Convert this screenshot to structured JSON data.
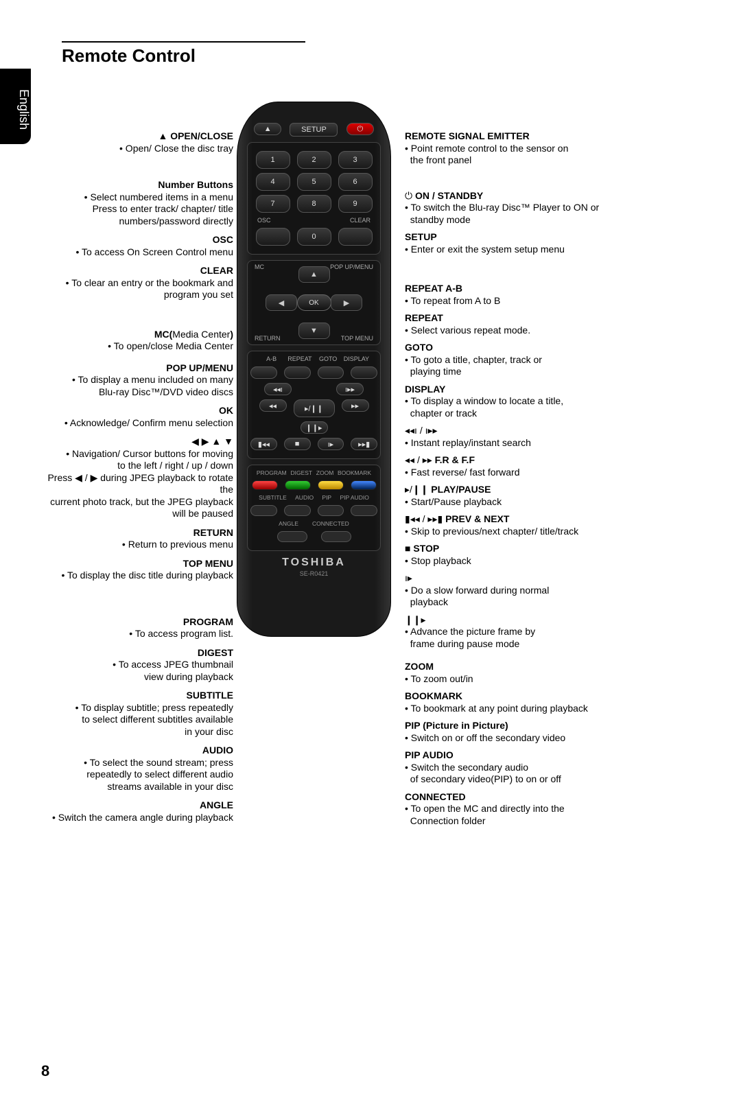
{
  "page": {
    "title": "Remote Control",
    "language": "English",
    "number": "8"
  },
  "remote": {
    "brand": "TOSHIBA",
    "model": "SE-R0421",
    "topButtons": {
      "eject": "▲",
      "setup": "SETUP",
      "power": "⏻"
    },
    "numbers": [
      "1",
      "2",
      "3",
      "4",
      "5",
      "6",
      "7",
      "8",
      "9",
      "0"
    ],
    "oscLabel": "OSC",
    "clearLabel": "CLEAR",
    "nav": {
      "mc": "MC",
      "popup": "POP UP/MENU",
      "return": "RETURN",
      "topmenu": "TOP MENU",
      "ok": "OK"
    },
    "midLabels": [
      "A-B",
      "REPEAT",
      "GOTO",
      "DISPLAY"
    ],
    "transport": {
      "r1": [
        "◂◂ı",
        "ı▸▸"
      ],
      "r2": [
        "◂◂",
        "▸/❙❙",
        "▸▸"
      ],
      "r3": [
        "❙❙▸"
      ],
      "r4": [
        "▮◂◂",
        "■",
        "ı▸",
        "▸▸▮"
      ]
    },
    "colorLabels": [
      "PROGRAM",
      "DIGEST",
      "ZOOM",
      "BOOKMARK"
    ],
    "bottomLabels1": [
      "SUBTITLE",
      "AUDIO",
      "PIP",
      "PIP AUDIO"
    ],
    "bottomLabels2": [
      "ANGLE",
      "CONNECTED"
    ]
  },
  "left": [
    {
      "sym": "▲",
      "lbl": "OPEN/CLOSE",
      "lines": [
        "Open/ Close the disc tray"
      ]
    },
    {
      "lbl": "Number Buttons",
      "lines": [
        "Select numbered items in a menu",
        "Press to enter track/ chapter/ title",
        "numbers/password directly"
      ],
      "gap": 36
    },
    {
      "lbl": "OSC",
      "lines": [
        "To access On Screen Control menu"
      ]
    },
    {
      "lbl": "CLEAR",
      "lines": [
        "To clear an entry or the bookmark and program you set"
      ]
    },
    {
      "lbl": "MC(",
      "suffix": "Media Center",
      "suffix2": ")",
      "lines": [
        "To open/close Media Center"
      ],
      "gap": 40
    },
    {
      "lbl": "POP UP/MENU",
      "lines": [
        "To display a menu included on many",
        "Blu-ray Disc™/DVD video discs"
      ],
      "gap": 14
    },
    {
      "lbl": "OK",
      "lines": [
        "Acknowledge/ Confirm menu selection"
      ]
    },
    {
      "sym": "◀ ▶ ▲ ▼",
      "lbl": "",
      "lines": [
        "Navigation/ Cursor buttons for moving",
        "to the left / right / up / down",
        "Press ◀ / ▶ during JPEG playback to rotate the",
        "current photo track, but the JPEG playback",
        "will be paused"
      ]
    },
    {
      "lbl": "RETURN",
      "lines": [
        "Return to previous menu"
      ]
    },
    {
      "lbl": "TOP MENU",
      "lines": [
        "To display the disc title during playback"
      ]
    },
    {
      "lbl": "PROGRAM",
      "lines": [
        "To access program list."
      ],
      "gap": 50
    },
    {
      "lbl": "DIGEST",
      "lines": [
        "To access JPEG thumbnail",
        "view during playback"
      ],
      "gap": 10
    },
    {
      "lbl": "SUBTITLE",
      "lines": [
        "To display subtitle; press repeatedly",
        "to select different subtitles available",
        "in your disc"
      ],
      "gap": 10
    },
    {
      "lbl": "AUDIO",
      "lines": [
        "To select the sound stream; press",
        "repeatedly to select different audio",
        "streams available in your disc"
      ]
    },
    {
      "lbl": "ANGLE",
      "lines": [
        "Switch the camera angle during playback"
      ],
      "gap": 4
    }
  ],
  "right": [
    {
      "lbl": "REMOTE SIGNAL EMITTER",
      "lines": [
        "Point remote control to the sensor on",
        "the front panel"
      ]
    },
    {
      "lbl": "ON / STANDBY",
      "sym": "⏻",
      "lines": [
        "To switch the Blu-ray Disc™ Player to ON or",
        "standby mode"
      ],
      "gap": 34
    },
    {
      "lbl": "SETUP",
      "lines": [
        "Enter or exit the system setup menu"
      ]
    },
    {
      "lbl": "REPEAT A-B",
      "lines": [
        "To repeat from A to B"
      ],
      "gap": 40
    },
    {
      "lbl": "REPEAT",
      "lines": [
        "Select various repeat mode."
      ]
    },
    {
      "lbl": "GOTO",
      "lines": [
        "To goto a title, chapter, track or",
        "playing time"
      ]
    },
    {
      "lbl": "DISPLAY",
      "lines": [
        "To display a window to locate a title,",
        "chapter or track"
      ]
    },
    {
      "sym": "◂◂ı / ı▸▸",
      "lbl": "",
      "lines": [
        "Instant replay/instant search"
      ]
    },
    {
      "sym": "◂◂ / ▸▸",
      "lbl": "F.R & F.F",
      "lines": [
        "Fast reverse/ fast forward"
      ]
    },
    {
      "sym": "▸/❙❙",
      "lbl": "PLAY/PAUSE",
      "lines": [
        "Start/Pause playback"
      ]
    },
    {
      "sym": "▮◂◂ / ▸▸▮",
      "lbl": "PREV & NEXT",
      "lines": [
        "Skip to previous/next chapter/ title/track"
      ]
    },
    {
      "sym": "■",
      "lbl": "STOP",
      "lines": [
        "Stop playback"
      ]
    },
    {
      "sym": "ı▸",
      "lbl": "",
      "lines": [
        "Do a slow forward during normal",
        "playback"
      ]
    },
    {
      "sym": "❙❙▸",
      "lbl": "",
      "lines": [
        "Advance the picture frame by",
        "frame during pause mode"
      ]
    },
    {
      "lbl": "ZOOM",
      "lines": [
        "To zoom out/in"
      ],
      "gap": 16
    },
    {
      "lbl": "BOOKMARK",
      "lines": [
        "To bookmark at any point during playback"
      ]
    },
    {
      "lbl": "PIP (Picture in Picture)",
      "lines": [
        "Switch on or off the secondary video"
      ],
      "gap": 6
    },
    {
      "lbl": "PIP AUDIO",
      "lines": [
        "Switch the secondary audio",
        "of secondary video(PIP) to on or off"
      ],
      "gap": 6
    },
    {
      "lbl": "CONNECTED",
      "lines": [
        "To open the MC and directly into the",
        "Connection folder"
      ]
    }
  ]
}
